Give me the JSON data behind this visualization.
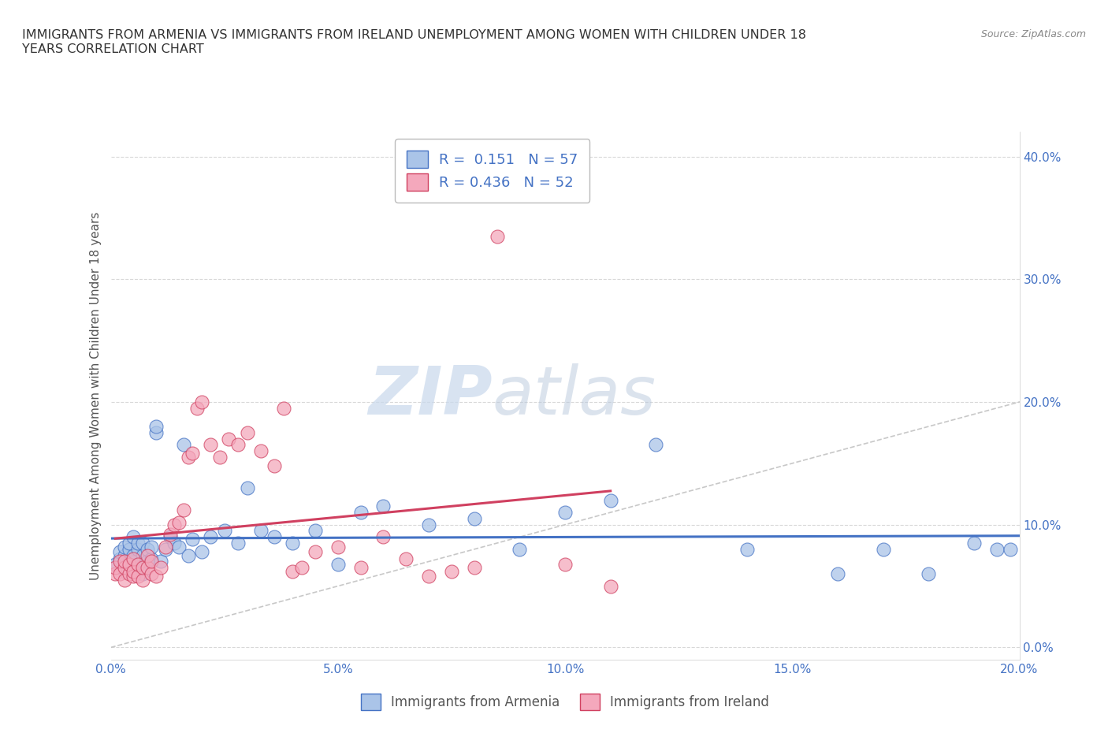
{
  "title": "IMMIGRANTS FROM ARMENIA VS IMMIGRANTS FROM IRELAND UNEMPLOYMENT AMONG WOMEN WITH CHILDREN UNDER 18\nYEARS CORRELATION CHART",
  "source": "Source: ZipAtlas.com",
  "ylabel": "Unemployment Among Women with Children Under 18 years",
  "legend_bottom": [
    "Immigrants from Armenia",
    "Immigrants from Ireland"
  ],
  "R_armenia": 0.151,
  "N_armenia": 57,
  "R_ireland": 0.436,
  "N_ireland": 52,
  "armenia_color": "#aac4e8",
  "ireland_color": "#f4a8bc",
  "armenia_line_color": "#4472c4",
  "ireland_line_color": "#d04060",
  "diagonal_color": "#c8c8c8",
  "background_color": "#ffffff",
  "grid_color": "#d8d8d8",
  "watermark_zip": "ZIP",
  "watermark_atlas": "atlas",
  "xlim": [
    0.0,
    0.2
  ],
  "ylim": [
    -0.01,
    0.42
  ],
  "xticks": [
    0.0,
    0.05,
    0.1,
    0.15,
    0.2
  ],
  "yticks": [
    0.0,
    0.1,
    0.2,
    0.3,
    0.4
  ],
  "armenia_x": [
    0.001,
    0.002,
    0.002,
    0.003,
    0.003,
    0.003,
    0.004,
    0.004,
    0.004,
    0.005,
    0.005,
    0.005,
    0.006,
    0.006,
    0.006,
    0.007,
    0.007,
    0.007,
    0.008,
    0.008,
    0.009,
    0.009,
    0.01,
    0.01,
    0.011,
    0.012,
    0.013,
    0.014,
    0.015,
    0.016,
    0.017,
    0.018,
    0.02,
    0.022,
    0.025,
    0.028,
    0.03,
    0.033,
    0.036,
    0.04,
    0.045,
    0.05,
    0.055,
    0.06,
    0.07,
    0.08,
    0.09,
    0.1,
    0.11,
    0.12,
    0.14,
    0.16,
    0.17,
    0.18,
    0.19,
    0.195,
    0.198
  ],
  "armenia_y": [
    0.068,
    0.072,
    0.078,
    0.062,
    0.075,
    0.082,
    0.07,
    0.08,
    0.085,
    0.065,
    0.075,
    0.09,
    0.068,
    0.08,
    0.085,
    0.06,
    0.075,
    0.085,
    0.07,
    0.08,
    0.072,
    0.082,
    0.175,
    0.18,
    0.07,
    0.08,
    0.09,
    0.085,
    0.082,
    0.165,
    0.075,
    0.088,
    0.078,
    0.09,
    0.095,
    0.085,
    0.13,
    0.095,
    0.09,
    0.085,
    0.095,
    0.068,
    0.11,
    0.115,
    0.1,
    0.105,
    0.08,
    0.11,
    0.12,
    0.165,
    0.08,
    0.06,
    0.08,
    0.06,
    0.085,
    0.08,
    0.08
  ],
  "ireland_x": [
    0.001,
    0.001,
    0.002,
    0.002,
    0.003,
    0.003,
    0.003,
    0.004,
    0.004,
    0.005,
    0.005,
    0.005,
    0.006,
    0.006,
    0.007,
    0.007,
    0.008,
    0.008,
    0.009,
    0.009,
    0.01,
    0.011,
    0.012,
    0.013,
    0.014,
    0.015,
    0.016,
    0.017,
    0.018,
    0.019,
    0.02,
    0.022,
    0.024,
    0.026,
    0.028,
    0.03,
    0.033,
    0.036,
    0.038,
    0.04,
    0.042,
    0.045,
    0.05,
    0.055,
    0.06,
    0.065,
    0.07,
    0.075,
    0.08,
    0.085,
    0.1,
    0.11
  ],
  "ireland_y": [
    0.06,
    0.065,
    0.06,
    0.07,
    0.055,
    0.065,
    0.07,
    0.06,
    0.068,
    0.058,
    0.062,
    0.072,
    0.058,
    0.068,
    0.055,
    0.065,
    0.065,
    0.075,
    0.06,
    0.07,
    0.058,
    0.065,
    0.082,
    0.092,
    0.1,
    0.102,
    0.112,
    0.155,
    0.158,
    0.195,
    0.2,
    0.165,
    0.155,
    0.17,
    0.165,
    0.175,
    0.16,
    0.148,
    0.195,
    0.062,
    0.065,
    0.078,
    0.082,
    0.065,
    0.09,
    0.072,
    0.058,
    0.062,
    0.065,
    0.335,
    0.068,
    0.05
  ]
}
